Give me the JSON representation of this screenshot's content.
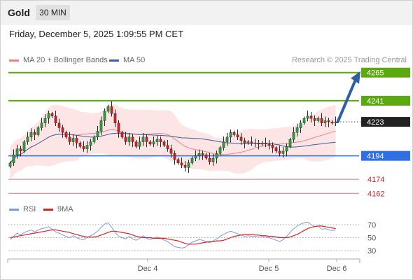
{
  "header": {
    "instrument": "Gold",
    "timeframe": "30 MIN",
    "datetime": "Friday, December 5, 2025 1:09:55 PM CET",
    "copyright": "Research © 2025 Trading Central"
  },
  "legend": {
    "ma20_label": "MA 20 + Bollinger Bands",
    "ma50_label": "MA 50",
    "rsi_label": "RSI",
    "rsi_ma_label": "9MA"
  },
  "colors": {
    "candle_up": "#2e9e3e",
    "candle_down": "#d42020",
    "ma20": "#f08080",
    "ma50": "#3a5fa0",
    "band_fill": "#fde0e0",
    "resistance": "#5aa90e",
    "support_blue": "#2f6fe0",
    "support_red": "#e07070",
    "last_price": "#222222",
    "rsi": "#7b9be0",
    "rsi_ma": "#e02020",
    "arrow": "#2f5fa0"
  },
  "chart_data": [
    {
      "type": "candlestick",
      "title": "Gold",
      "timeframe": "30 MIN",
      "x_tick_labels": [
        "Dec 4",
        "Dec 5",
        "Dec 6"
      ],
      "y_range": [
        4152,
        4272
      ],
      "levels": [
        {
          "value": 4265,
          "label": "4265",
          "kind": "resistance"
        },
        {
          "value": 4241,
          "label": "4241",
          "kind": "resistance"
        },
        {
          "value": 4223,
          "label": "4223",
          "kind": "last"
        },
        {
          "value": 4194,
          "label": "4194",
          "kind": "support"
        },
        {
          "value": 4174,
          "label": "4174",
          "kind": "support"
        },
        {
          "value": 4162,
          "label": "4162",
          "kind": "support"
        }
      ],
      "forecast_arrow": {
        "from": 4223,
        "to": 4265
      },
      "close": [
        4188,
        4195,
        4200,
        4198,
        4206,
        4210,
        4214,
        4212,
        4218,
        4222,
        4226,
        4230,
        4228,
        4222,
        4218,
        4214,
        4210,
        4206,
        4209,
        4205,
        4202,
        4200,
        4203,
        4206,
        4210,
        4215,
        4224,
        4232,
        4236,
        4230,
        4222,
        4214,
        4210,
        4206,
        4210,
        4206,
        4202,
        4206,
        4210,
        4206,
        4204,
        4206,
        4208,
        4206,
        4203,
        4200,
        4196,
        4191,
        4188,
        4186,
        4184,
        4188,
        4192,
        4194,
        4196,
        4195,
        4192,
        4189,
        4192,
        4196,
        4201,
        4206,
        4210,
        4214,
        4212,
        4210,
        4207,
        4205,
        4206,
        4205,
        4205,
        4204,
        4205,
        4204,
        4203,
        4201,
        4198,
        4196,
        4198,
        4202,
        4208,
        4214,
        4218,
        4222,
        4226,
        4228,
        4226,
        4224,
        4226,
        4222,
        4224,
        4223,
        4222,
        4223
      ]
    },
    {
      "type": "line",
      "title": "RSI",
      "y_ticks": [
        30,
        50,
        70
      ],
      "series": [
        {
          "name": "RSI",
          "values": [
            47,
            52,
            57,
            54,
            58,
            60,
            62,
            59,
            62,
            64,
            65,
            67,
            63,
            59,
            57,
            54,
            52,
            50,
            53,
            50,
            48,
            47,
            50,
            53,
            56,
            60,
            66,
            71,
            73,
            66,
            58,
            52,
            50,
            48,
            52,
            48,
            46,
            49,
            53,
            49,
            47,
            49,
            51,
            49,
            46,
            44,
            40,
            36,
            35,
            34,
            35,
            39,
            43,
            45,
            47,
            46,
            44,
            42,
            45,
            48,
            52,
            55,
            58,
            60,
            58,
            56,
            54,
            52,
            53,
            52,
            52,
            51,
            52,
            51,
            50,
            48,
            46,
            44,
            47,
            52,
            58,
            64,
            68,
            71,
            73,
            74,
            70,
            67,
            68,
            63,
            64,
            62,
            61,
            62
          ]
        },
        {
          "name": "9MA",
          "values": [
            50,
            51,
            52,
            53,
            54,
            55,
            56,
            57,
            58,
            59,
            60,
            61,
            62,
            62,
            61,
            60,
            59,
            58,
            56,
            55,
            53,
            52,
            51,
            51,
            51,
            52,
            54,
            56,
            58,
            60,
            60,
            59,
            58,
            57,
            56,
            54,
            52,
            51,
            50,
            50,
            50,
            49,
            49,
            49,
            49,
            48,
            47,
            46,
            45,
            43,
            41,
            40,
            40,
            40,
            41,
            42,
            43,
            44,
            44,
            45,
            45,
            46,
            48,
            50,
            52,
            53,
            54,
            55,
            55,
            55,
            54,
            54,
            53,
            53,
            52,
            52,
            51,
            50,
            50,
            50,
            51,
            53,
            55,
            58,
            61,
            64,
            66,
            67,
            68,
            68,
            67,
            66,
            65,
            64
          ]
        }
      ]
    }
  ]
}
